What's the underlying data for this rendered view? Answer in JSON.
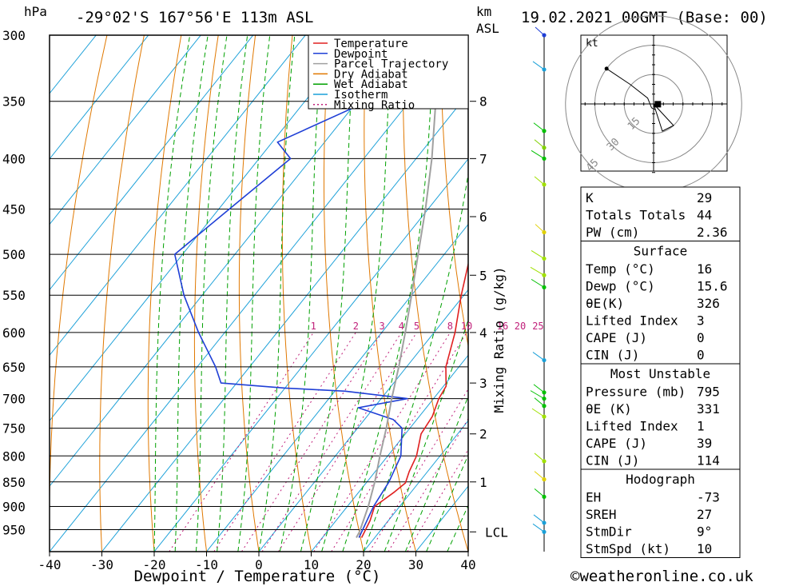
{
  "header": {
    "units_left": "hPa",
    "location": "-29°02'S 167°56'E 113m ASL",
    "km_label": "km",
    "asl_label": "ASL",
    "datetime": "19.02.2021 00GMT (Base: 00)"
  },
  "chart_data": {
    "type": "skew-t",
    "title": "-29°02'S 167°56'E 113m ASL",
    "xlabel": "Dewpoint / Temperature (°C)",
    "ylabel": "hPa",
    "xlim": [
      -40,
      40
    ],
    "ylim": [
      1000,
      300
    ],
    "x_ticks": [
      -40,
      -30,
      -20,
      -10,
      0,
      10,
      20,
      30,
      40
    ],
    "pressure_levels": [
      300,
      350,
      400,
      450,
      500,
      550,
      600,
      650,
      700,
      750,
      800,
      850,
      900,
      950
    ],
    "km_ticks": [
      {
        "label": "8",
        "p": 350
      },
      {
        "label": "7",
        "p": 400
      },
      {
        "label": "6",
        "p": 458
      },
      {
        "label": "5",
        "p": 525
      },
      {
        "label": "4",
        "p": 600
      },
      {
        "label": "3",
        "p": 675
      },
      {
        "label": "2",
        "p": 760
      },
      {
        "label": "1",
        "p": 850
      },
      {
        "label": "LCL",
        "p": 955
      }
    ],
    "mixing_ratio_label": "Mixing Ratio (g/kg)",
    "mixing_ratio_values": [
      1,
      2,
      3,
      4,
      5,
      8,
      10,
      16,
      20,
      25
    ],
    "legend": [
      {
        "label": "Temperature",
        "color": "#e02020",
        "style": "solid"
      },
      {
        "label": "Dewpoint",
        "color": "#1f3fd6",
        "style": "solid"
      },
      {
        "label": "Parcel Trajectory",
        "color": "#a0a0a0",
        "style": "solid"
      },
      {
        "label": "Dry Adiabat",
        "color": "#e07800",
        "style": "solid"
      },
      {
        "label": "Wet Adiabat",
        "color": "#00a000",
        "style": "solid"
      },
      {
        "label": "Isotherm",
        "color": "#1aa0d8",
        "style": "solid"
      },
      {
        "label": "Mixing Ratio",
        "color": "#c0207a",
        "style": "dotted"
      }
    ],
    "series": [
      {
        "name": "Temperature",
        "color": "#e02020",
        "points": [
          [
            968,
            17.5
          ],
          [
            930,
            16.5
          ],
          [
            900,
            15.2
          ],
          [
            870,
            16.8
          ],
          [
            852,
            17.5
          ],
          [
            830,
            16.5
          ],
          [
            800,
            15.5
          ],
          [
            760,
            13.0
          ],
          [
            730,
            12.5
          ],
          [
            700,
            11.0
          ],
          [
            680,
            10.5
          ],
          [
            650,
            7.5
          ],
          [
            600,
            4.0
          ],
          [
            550,
            -0.5
          ],
          [
            500,
            -5.0
          ],
          [
            450,
            -12.0
          ],
          [
            400,
            -19.5
          ],
          [
            385,
            -22.5
          ],
          [
            380,
            -22.0
          ],
          [
            350,
            -28.5
          ],
          [
            330,
            -33.0
          ],
          [
            300,
            -40.0
          ]
        ]
      },
      {
        "name": "Dewpoint",
        "color": "#1f3fd6",
        "points": [
          [
            968,
            17.0
          ],
          [
            900,
            15.0
          ],
          [
            850,
            14.2
          ],
          [
            800,
            12.5
          ],
          [
            750,
            8.5
          ],
          [
            735,
            5.5
          ],
          [
            715,
            -3.0
          ],
          [
            700,
            5.0
          ],
          [
            688,
            -8.0
          ],
          [
            683,
            -20.0
          ],
          [
            675,
            -33.0
          ],
          [
            650,
            -36.5
          ],
          [
            600,
            -45.0
          ],
          [
            550,
            -53.5
          ],
          [
            500,
            -61.5
          ],
          [
            450,
            -58.0
          ],
          [
            400,
            -54.0
          ],
          [
            385,
            -59.0
          ],
          [
            350,
            -48.0
          ],
          [
            335,
            -35.0
          ],
          [
            330,
            -38.5
          ],
          [
            310,
            -33.0
          ],
          [
            300,
            -37.0
          ]
        ]
      },
      {
        "name": "Parcel Trajectory",
        "color": "#a0a0a0",
        "points": [
          [
            968,
            16.5
          ],
          [
            955,
            16.2
          ],
          [
            900,
            14.0
          ],
          [
            850,
            11.5
          ],
          [
            800,
            8.5
          ],
          [
            750,
            5.5
          ],
          [
            700,
            2.0
          ],
          [
            650,
            -1.5
          ],
          [
            600,
            -5.5
          ],
          [
            550,
            -10.0
          ],
          [
            500,
            -15.0
          ],
          [
            450,
            -20.5
          ],
          [
            400,
            -27.0
          ],
          [
            350,
            -35.0
          ],
          [
            300,
            -44.0
          ]
        ]
      }
    ],
    "wind_profile_markers": [
      {
        "p": 300,
        "color": "#1f3fd6"
      },
      {
        "p": 325,
        "color": "#1aa0d8"
      },
      {
        "p": 375,
        "color": "#00c000"
      },
      {
        "p": 390,
        "color": "#80d000"
      },
      {
        "p": 400,
        "color": "#00c000"
      },
      {
        "p": 425,
        "color": "#a0e000"
      },
      {
        "p": 475,
        "color": "#e0d000"
      },
      {
        "p": 505,
        "color": "#a0e000"
      },
      {
        "p": 525,
        "color": "#a0e000"
      },
      {
        "p": 540,
        "color": "#00c000"
      },
      {
        "p": 640,
        "color": "#1aa0d8"
      },
      {
        "p": 690,
        "color": "#00c000"
      },
      {
        "p": 700,
        "color": "#00c000"
      },
      {
        "p": 712,
        "color": "#00c000"
      },
      {
        "p": 730,
        "color": "#a0e000"
      },
      {
        "p": 810,
        "color": "#a0e000"
      },
      {
        "p": 845,
        "color": "#e0d000"
      },
      {
        "p": 880,
        "color": "#00c000"
      },
      {
        "p": 935,
        "color": "#1aa0d8"
      },
      {
        "p": 955,
        "color": "#1aa0d8"
      }
    ],
    "hodograph": {
      "unit_label": "kt",
      "ring_labels": [
        "15",
        "30",
        "45"
      ],
      "trace_kt": [
        [
          -24,
          18
        ],
        [
          -12,
          10
        ],
        [
          -3,
          3
        ],
        [
          -1,
          -2
        ],
        [
          1,
          -3
        ]
      ],
      "storm_motion_kt": [
        3,
        -3
      ]
    }
  },
  "stats": {
    "summary": [
      {
        "label": "K",
        "value": "29"
      },
      {
        "label": "Totals Totals",
        "value": "44"
      },
      {
        "label": "PW (cm)",
        "value": "2.36"
      }
    ],
    "surface": {
      "heading": "Surface",
      "rows": [
        {
          "label": "Temp (°C)",
          "value": "16"
        },
        {
          "label": "Dewp (°C)",
          "value": "15.6"
        },
        {
          "label": "θE(K)",
          "value": "326"
        },
        {
          "label": "Lifted Index",
          "value": "3"
        },
        {
          "label": "CAPE (J)",
          "value": "0"
        },
        {
          "label": "CIN (J)",
          "value": "0"
        }
      ]
    },
    "most_unstable": {
      "heading": "Most Unstable",
      "rows": [
        {
          "label": "Pressure (mb)",
          "value": "795"
        },
        {
          "label": "θE (K)",
          "value": "331"
        },
        {
          "label": "Lifted Index",
          "value": "1"
        },
        {
          "label": "CAPE (J)",
          "value": "39"
        },
        {
          "label": "CIN (J)",
          "value": "114"
        }
      ]
    },
    "hodograph": {
      "heading": "Hodograph",
      "rows": [
        {
          "label": "EH",
          "value": "-73"
        },
        {
          "label": "SREH",
          "value": "27"
        },
        {
          "label": "StmDir",
          "value": "9°"
        },
        {
          "label": "StmSpd (kt)",
          "value": "10"
        }
      ]
    }
  },
  "footer": {
    "copyright": "©weatheronline.co.uk"
  }
}
